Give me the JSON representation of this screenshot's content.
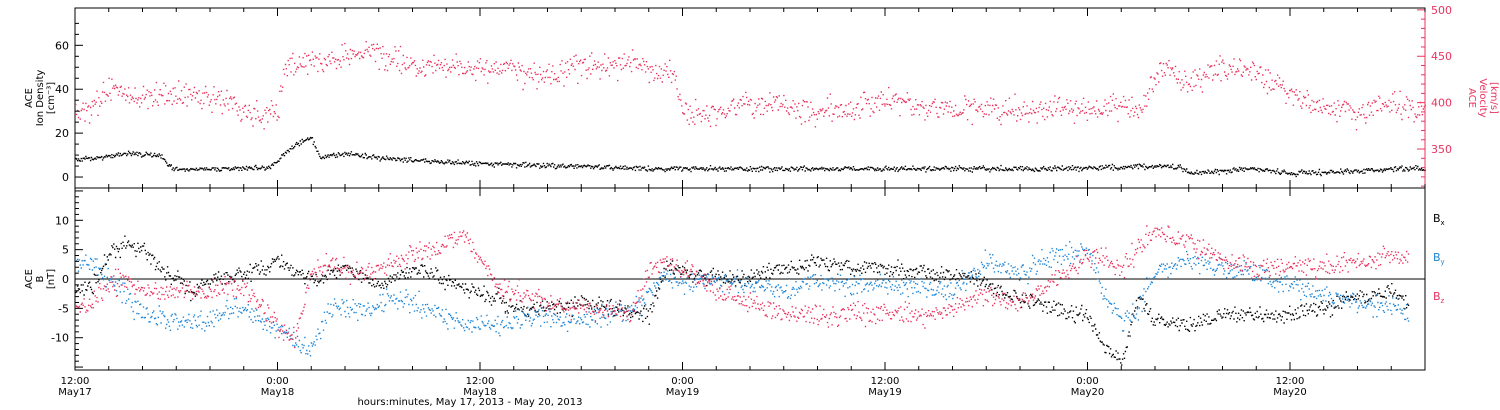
{
  "colors": {
    "density": "#000000",
    "velocity": "#e8335e",
    "bx": "#000000",
    "by": "#1f86d6",
    "bz": "#e8335e",
    "axis": "#000000"
  },
  "chart_data": [
    {
      "type": "scatter",
      "panel": "top",
      "ylabel_lines": [
        "ACE",
        "Ion Density",
        "[cm⁻³]"
      ],
      "ylim": [
        -5,
        77
      ],
      "yticks": [
        0,
        20,
        40,
        60
      ],
      "y2label_lines": [
        "ACE",
        "Velocity",
        "[km/s]"
      ],
      "y2lim": [
        308,
        502
      ],
      "y2ticks": [
        350,
        400,
        450,
        500
      ],
      "x_range_hours": [
        0,
        80
      ],
      "x_unit": "hours since 12:00 May 17, 2013",
      "series": [
        {
          "name": "Ion Density",
          "axis": "left",
          "color_key": "density",
          "keyframes": [
            [
              0,
              8
            ],
            [
              1.5,
              9
            ],
            [
              3,
              11
            ],
            [
              5,
              10
            ],
            [
              5.8,
              4
            ],
            [
              8,
              4
            ],
            [
              10,
              4.5
            ],
            [
              11.5,
              5
            ],
            [
              12,
              8
            ],
            [
              13,
              15
            ],
            [
              14,
              18
            ],
            [
              14.5,
              9
            ],
            [
              16,
              11
            ],
            [
              18,
              9
            ],
            [
              22,
              7
            ],
            [
              26,
              6
            ],
            [
              30,
              5
            ],
            [
              34,
              4
            ],
            [
              40,
              4
            ],
            [
              46,
              4
            ],
            [
              52,
              4
            ],
            [
              58,
              4
            ],
            [
              63,
              5
            ],
            [
              65.5,
              5
            ],
            [
              66,
              2
            ],
            [
              68,
              3
            ],
            [
              70,
              4
            ],
            [
              72,
              2
            ],
            [
              76,
              3
            ],
            [
              78,
              4
            ],
            [
              80,
              4
            ]
          ],
          "noise": 1.0
        },
        {
          "name": "Velocity",
          "axis": "right",
          "color_key": "velocity",
          "keyframes": [
            [
              0,
              390
            ],
            [
              1,
              395
            ],
            [
              2,
              415
            ],
            [
              4,
              405
            ],
            [
              6,
              410
            ],
            [
              8,
              405
            ],
            [
              10,
              393
            ],
            [
              11,
              385
            ],
            [
              12,
              395
            ],
            [
              12.5,
              445
            ],
            [
              14,
              443
            ],
            [
              15,
              448
            ],
            [
              17,
              455
            ],
            [
              20,
              442
            ],
            [
              24,
              438
            ],
            [
              27,
              432
            ],
            [
              30,
              440
            ],
            [
              34,
              440
            ],
            [
              35.5,
              430
            ],
            [
              36,
              390
            ],
            [
              38,
              388
            ],
            [
              40,
              400
            ],
            [
              43,
              395
            ],
            [
              46,
              390
            ],
            [
              48,
              405
            ],
            [
              50,
              395
            ],
            [
              53,
              393
            ],
            [
              56,
              393
            ],
            [
              60,
              395
            ],
            [
              63,
              395
            ],
            [
              64.5,
              440
            ],
            [
              66,
              420
            ],
            [
              68,
              440
            ],
            [
              70,
              430
            ],
            [
              72,
              410
            ],
            [
              74,
              395
            ],
            [
              76,
              390
            ],
            [
              78,
              400
            ],
            [
              80,
              395
            ]
          ],
          "noise": 12
        }
      ]
    },
    {
      "type": "scatter",
      "panel": "bottom",
      "ylabel_lines": [
        "ACE",
        "B",
        "[nT]"
      ],
      "ylim": [
        -15.5,
        15.5
      ],
      "yticks": [
        -10,
        -5,
        0,
        5,
        10
      ],
      "zero_line": true,
      "x_range_hours": [
        0,
        80
      ],
      "x_unit": "hours since 12:00 May 17, 2013",
      "series": [
        {
          "name": "Bx",
          "color_key": "bx",
          "keyframes": [
            [
              0,
              -2
            ],
            [
              1,
              -1
            ],
            [
              2,
              4
            ],
            [
              3,
              6
            ],
            [
              4,
              5
            ],
            [
              5,
              2
            ],
            [
              6,
              0
            ],
            [
              7,
              -2
            ],
            [
              8,
              0
            ],
            [
              10,
              1
            ],
            [
              12,
              3
            ],
            [
              14,
              0
            ],
            [
              15,
              1
            ],
            [
              16,
              2
            ],
            [
              18,
              -1
            ],
            [
              20,
              2
            ],
            [
              22,
              0
            ],
            [
              23,
              -2
            ],
            [
              25,
              -3
            ],
            [
              26,
              -5
            ],
            [
              28,
              -5
            ],
            [
              30,
              -4
            ],
            [
              32,
              -5
            ],
            [
              34,
              -6
            ],
            [
              35,
              2
            ],
            [
              37,
              1
            ],
            [
              39,
              0
            ],
            [
              42,
              2
            ],
            [
              44,
              3
            ],
            [
              46,
              2
            ],
            [
              48,
              2
            ],
            [
              51,
              1
            ],
            [
              53,
              0
            ],
            [
              55,
              -2
            ],
            [
              58,
              -5
            ],
            [
              60,
              -6
            ],
            [
              61,
              -12
            ],
            [
              62,
              -14
            ],
            [
              63,
              -3
            ],
            [
              64,
              -7
            ],
            [
              66,
              -8
            ],
            [
              68,
              -6
            ],
            [
              70,
              -6
            ],
            [
              72,
              -6
            ],
            [
              74,
              -5
            ],
            [
              76,
              -3
            ],
            [
              78,
              -2
            ],
            [
              79,
              -4
            ]
          ],
          "noise": 1.2
        },
        {
          "name": "By",
          "color_key": "by",
          "keyframes": [
            [
              0,
              3
            ],
            [
              1,
              3
            ],
            [
              2,
              0
            ],
            [
              3,
              -3
            ],
            [
              4,
              -6
            ],
            [
              6,
              -7
            ],
            [
              8,
              -7
            ],
            [
              9,
              -5
            ],
            [
              10,
              -5
            ],
            [
              11,
              -7
            ],
            [
              12,
              -8
            ],
            [
              13,
              -10
            ],
            [
              14,
              -12
            ],
            [
              15,
              -5
            ],
            [
              17,
              -5
            ],
            [
              19,
              -3
            ],
            [
              21,
              -5
            ],
            [
              23,
              -8
            ],
            [
              25,
              -8
            ],
            [
              27,
              -6
            ],
            [
              29,
              -7
            ],
            [
              31,
              -6
            ],
            [
              33,
              -5
            ],
            [
              35,
              1
            ],
            [
              36,
              -1
            ],
            [
              38,
              0
            ],
            [
              40,
              -1
            ],
            [
              42,
              -2
            ],
            [
              44,
              0
            ],
            [
              46,
              -1
            ],
            [
              48,
              -1
            ],
            [
              50,
              -1
            ],
            [
              52,
              -2
            ],
            [
              54,
              3
            ],
            [
              56,
              1
            ],
            [
              58,
              4
            ],
            [
              60,
              5
            ],
            [
              61,
              -3
            ],
            [
              62,
              -7
            ],
            [
              63,
              -5
            ],
            [
              64,
              2
            ],
            [
              66,
              3
            ],
            [
              68,
              2
            ],
            [
              70,
              1
            ],
            [
              72,
              -1
            ],
            [
              74,
              -3
            ],
            [
              76,
              -4
            ],
            [
              78,
              -5
            ],
            [
              79,
              -6
            ]
          ],
          "noise": 1.5
        },
        {
          "name": "Bz",
          "color_key": "bz",
          "keyframes": [
            [
              0,
              -5
            ],
            [
              1,
              -4
            ],
            [
              2,
              -1
            ],
            [
              3,
              0
            ],
            [
              4,
              -2
            ],
            [
              6,
              -2
            ],
            [
              8,
              -2
            ],
            [
              10,
              -1
            ],
            [
              12,
              -8
            ],
            [
              13,
              -10
            ],
            [
              14,
              1
            ],
            [
              15,
              3
            ],
            [
              17,
              1
            ],
            [
              19,
              3
            ],
            [
              21,
              5
            ],
            [
              23,
              8
            ],
            [
              25,
              -1
            ],
            [
              27,
              -3
            ],
            [
              29,
              -5
            ],
            [
              31,
              -5
            ],
            [
              33,
              -6
            ],
            [
              34,
              2
            ],
            [
              35,
              3
            ],
            [
              36,
              2
            ],
            [
              38,
              -2
            ],
            [
              40,
              -4
            ],
            [
              42,
              -6
            ],
            [
              44,
              -6
            ],
            [
              46,
              -6
            ],
            [
              48,
              -6
            ],
            [
              50,
              -6
            ],
            [
              52,
              -5
            ],
            [
              54,
              -3
            ],
            [
              56,
              -4
            ],
            [
              58,
              0
            ],
            [
              60,
              4
            ],
            [
              61,
              4
            ],
            [
              62,
              1
            ],
            [
              63,
              6
            ],
            [
              64,
              8
            ],
            [
              66,
              6
            ],
            [
              68,
              3
            ],
            [
              70,
              2
            ],
            [
              72,
              2
            ],
            [
              74,
              2
            ],
            [
              76,
              3
            ],
            [
              78,
              4
            ],
            [
              79,
              4
            ]
          ],
          "noise": 1.5
        }
      ],
      "legend": [
        {
          "base": "B",
          "sub": "x",
          "color_key": "bx"
        },
        {
          "base": "B",
          "sub": "y",
          "color_key": "by"
        },
        {
          "base": "B",
          "sub": "z",
          "color_key": "bz"
        }
      ]
    }
  ],
  "x_axis": {
    "major_ticks": [
      {
        "hour": 0,
        "time": "12:00",
        "date": "May17"
      },
      {
        "hour": 12,
        "time": "0:00",
        "date": "May18"
      },
      {
        "hour": 24,
        "time": "12:00",
        "date": "May18"
      },
      {
        "hour": 36,
        "time": "0:00",
        "date": "May19"
      },
      {
        "hour": 48,
        "time": "12:00",
        "date": "May19"
      },
      {
        "hour": 60,
        "time": "0:00",
        "date": "May20"
      },
      {
        "hour": 72,
        "time": "12:00",
        "date": "May20"
      }
    ],
    "minor_tick_interval_hours": 2,
    "label": "hours:minutes, May 17, 2013 - May 20, 2013"
  }
}
